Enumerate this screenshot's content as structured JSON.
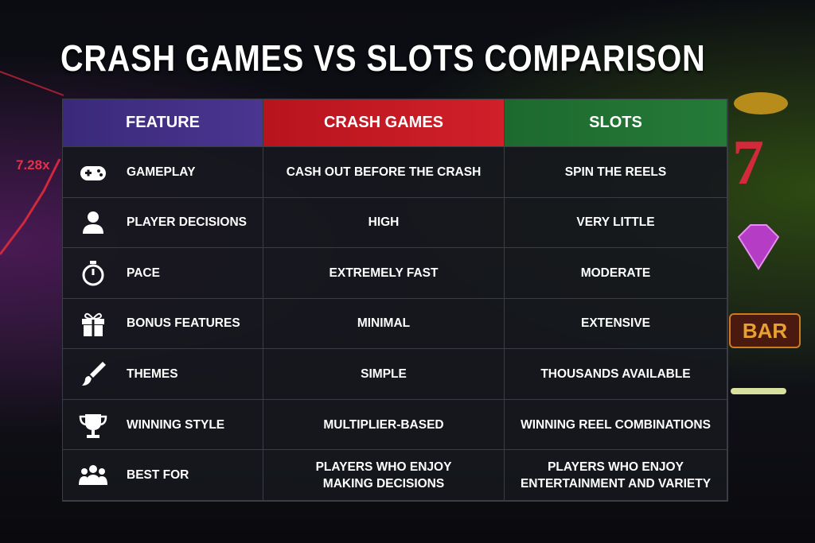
{
  "header": {
    "title": "CRASH GAMES VS SLOTS COMPARISON"
  },
  "decor": {
    "multiplier": "7.28x",
    "seven": "7",
    "bar": "BAR"
  },
  "table": {
    "columns": [
      "FEATURE",
      "CRASH GAMES",
      "SLOTS"
    ],
    "rows": [
      [
        [
          "GAMEPLAY"
        ],
        [
          "CASH OUT BEFORE THE CRASH"
        ],
        [
          "SPIN THE REELS"
        ]
      ],
      [
        [
          "PLAYER DECISIONS"
        ],
        [
          "HIGH"
        ],
        [
          "VERY LITTLE"
        ]
      ],
      [
        [
          "PACE"
        ],
        [
          "EXTREMELY FAST"
        ],
        [
          "MODERATE"
        ]
      ],
      [
        [
          "BONUS FEATURES"
        ],
        [
          "MINIMAL"
        ],
        [
          "EXTENSIVE"
        ]
      ],
      [
        [
          "THEMES"
        ],
        [
          "SIMPLE"
        ],
        [
          "THOUSANDS AVAILABLE"
        ]
      ],
      [
        [
          "WINNING STYLE"
        ],
        [
          "MULTIPLIER-BASED"
        ],
        [
          "WINNING REEL COMBINATIONS"
        ]
      ],
      [
        [
          "BEST FOR"
        ],
        [
          "PLAYERS WHO ENJOY",
          "MAKING DECISIONS"
        ],
        [
          "PLAYERS WHO ENJOY",
          "ENTERTAINMENT AND VARIETY"
        ]
      ]
    ]
  }
}
